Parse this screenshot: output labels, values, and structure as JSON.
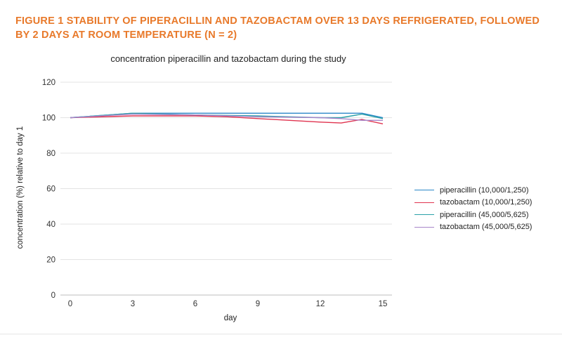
{
  "figure_title": "FIGURE 1 STABILITY OF PIPERACILLIN AND TAZOBACTAM OVER 13 DAYS REFRIGERATED, FOLLOWED BY 2 DAYS AT ROOM TEMPERATURE (N = 2)",
  "chart_data": {
    "type": "line",
    "title": "concentration piperacillin and tazobactam during the study",
    "xlabel": "day",
    "ylabel": "concentration (%) relative to day 1",
    "xlim": [
      0,
      15
    ],
    "ylim": [
      0,
      120
    ],
    "xticks": [
      "0",
      "3",
      "6",
      "9",
      "12",
      "15"
    ],
    "yticks": [
      "0",
      "20",
      "40",
      "60",
      "80",
      "100",
      "120"
    ],
    "grid": true,
    "legend_position": "right",
    "series": [
      {
        "name": "piperacillin (10,000/1,250)",
        "color": "#2a86c8",
        "x": [
          0,
          3,
          6,
          9,
          12,
          13,
          14,
          15
        ],
        "y": [
          100,
          102.5,
          102.5,
          102.5,
          102.5,
          102.5,
          102.5,
          100
        ]
      },
      {
        "name": "tazobactam (10,000/1,250)",
        "color": "#e0334f",
        "x": [
          0,
          3,
          6,
          7.5,
          9,
          12,
          13,
          14,
          15
        ],
        "y": [
          100,
          101,
          101,
          100.5,
          99.5,
          97.5,
          97,
          99,
          96.5
        ]
      },
      {
        "name": "piperacillin (45,000/5,625)",
        "color": "#2aa1a8",
        "x": [
          0,
          3,
          6,
          9,
          12,
          13,
          14,
          15
        ],
        "y": [
          100,
          102.5,
          101.5,
          101,
          100,
          100,
          102,
          99.5
        ]
      },
      {
        "name": "tazobactam (45,000/5,625)",
        "color": "#a886c9",
        "x": [
          0,
          3,
          6,
          9,
          12,
          13,
          14,
          15
        ],
        "y": [
          100,
          102,
          101.5,
          100.5,
          100,
          99.5,
          98.5,
          98.5
        ]
      }
    ]
  }
}
